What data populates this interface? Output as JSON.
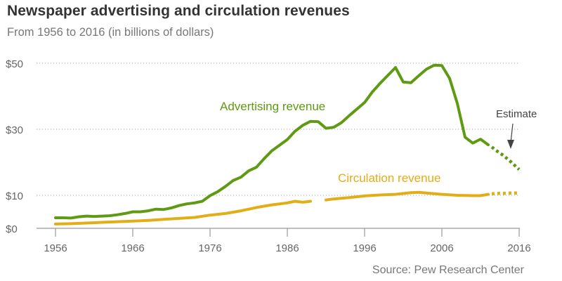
{
  "header": {
    "title": "Newspaper advertising and circulation revenues",
    "subtitle": "From 1956 to 2016 (in billions of dollars)"
  },
  "footer": {
    "source": "Source: Pew Research Center"
  },
  "colors": {
    "advertising": "#5e9a12",
    "circulation": "#e3ad16",
    "grid": "#aaaaaa",
    "axis": "#999999",
    "text": "#666666"
  },
  "chart_data": {
    "type": "line",
    "title": "Newspaper advertising and circulation revenues",
    "subtitle": "From 1956 to 2016 (in billions of dollars)",
    "xlabel": "",
    "ylabel": "",
    "xlim": [
      1956,
      2016
    ],
    "ylim": [
      0,
      50
    ],
    "x_ticks": [
      1956,
      1966,
      1976,
      1986,
      1996,
      2006,
      2016
    ],
    "x_tick_labels": [
      "1956",
      "1966",
      "1976",
      "1986",
      "1996",
      "2006",
      "2016"
    ],
    "y_ticks": [
      0,
      10,
      30,
      50
    ],
    "y_tick_labels": [
      "$0",
      "$10",
      "$30",
      "$50"
    ],
    "grid": "horizontal dotted at $10, $30, $50",
    "legend": "inline labels",
    "annotations": [
      {
        "text": "Estimate",
        "points_to": "advertising estimate segment"
      }
    ],
    "series": [
      {
        "name": "Advertising revenue",
        "label": "Advertising revenue",
        "color": "#5e9a12",
        "segments": [
          {
            "style": "solid",
            "x": [
              1956,
              1957,
              1958,
              1959,
              1960,
              1961,
              1962,
              1963,
              1964,
              1965,
              1966,
              1967,
              1968,
              1969,
              1970,
              1971,
              1972,
              1973,
              1974,
              1975,
              1976,
              1977,
              1978,
              1979,
              1980,
              1981,
              1982,
              1983,
              1984,
              1985,
              1986,
              1987,
              1988,
              1989,
              1990,
              1991,
              1992,
              1993,
              1994,
              1995,
              1996,
              1997,
              1998,
              1999,
              2000,
              2001,
              2002,
              2003,
              2004,
              2005,
              2006,
              2007,
              2008,
              2009,
              2010,
              2011,
              2012
            ],
            "y": [
              3.2,
              3.2,
              3.1,
              3.5,
              3.7,
              3.6,
              3.7,
              3.8,
              4.1,
              4.5,
              5.0,
              5.0,
              5.3,
              5.8,
              5.7,
              6.2,
              6.9,
              7.4,
              7.7,
              8.2,
              9.9,
              11.1,
              12.7,
              14.5,
              15.5,
              17.4,
              18.5,
              21.1,
              23.5,
              25.2,
              26.9,
              29.4,
              31.2,
              32.4,
              32.3,
              30.3,
              30.6,
              32.0,
              34.1,
              36.1,
              38.1,
              41.3,
              43.9,
              46.3,
              48.7,
              44.3,
              44.1,
              46.2,
              48.2,
              49.4,
              49.3,
              45.4,
              37.8,
              27.6,
              25.8,
              27.0,
              25.3
            ]
          },
          {
            "style": "dotted",
            "x": [
              2013,
              2014,
              2015,
              2016
            ],
            "y": [
              23.6,
              22.0,
              20.0,
              17.8
            ]
          }
        ]
      },
      {
        "name": "Circulation revenue",
        "label": "Circulation revenue",
        "color": "#e3ad16",
        "segments": [
          {
            "style": "solid",
            "x": [
              1956,
              1958,
              1960,
              1962,
              1964,
              1966,
              1968,
              1970,
              1972,
              1974,
              1976,
              1978,
              1980,
              1982,
              1984,
              1986,
              1987,
              1988,
              1989
            ],
            "y": [
              1.3,
              1.4,
              1.6,
              1.8,
              2.0,
              2.2,
              2.4,
              2.7,
              3.0,
              3.3,
              4.0,
              4.5,
              5.3,
              6.3,
              7.1,
              7.7,
              8.2,
              7.9,
              8.2
            ]
          },
          {
            "style": "solid",
            "x": [
              1991,
              1992,
              1994,
              1996,
              1998,
              2000,
              2002,
              2003,
              2004,
              2006,
              2008,
              2010,
              2011,
              2012
            ],
            "y": [
              8.6,
              8.9,
              9.3,
              9.8,
              10.1,
              10.3,
              10.8,
              10.9,
              10.7,
              10.3,
              10.0,
              9.9,
              9.9,
              10.3
            ]
          },
          {
            "style": "dotted",
            "x": [
              2013,
              2014,
              2015,
              2016
            ],
            "y": [
              10.6,
              10.6,
              10.7,
              10.7
            ]
          }
        ]
      }
    ]
  }
}
